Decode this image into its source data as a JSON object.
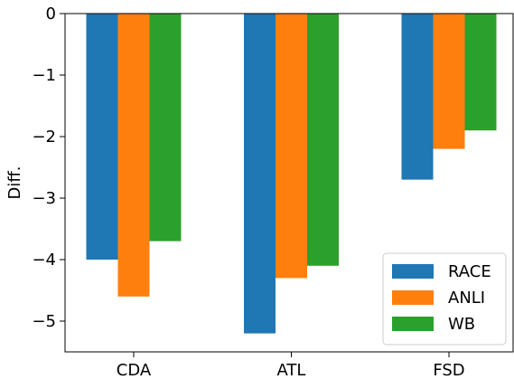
{
  "chart_data": {
    "type": "bar",
    "categories": [
      "CDA",
      "ATL",
      "FSD"
    ],
    "series": [
      {
        "name": "RACE",
        "color": "#1f77b4",
        "values": [
          -4.0,
          -5.2,
          -2.7
        ]
      },
      {
        "name": "ANLI",
        "color": "#ff7f0e",
        "values": [
          -4.6,
          -4.3,
          -2.2
        ]
      },
      {
        "name": "WB",
        "color": "#2ca02c",
        "values": [
          -3.7,
          -4.1,
          -1.9
        ]
      }
    ],
    "title": "",
    "xlabel": "",
    "ylabel": "Diff.",
    "ylim": [
      -5.5,
      0
    ],
    "yticks": [
      0,
      -1,
      -2,
      -3,
      -4,
      -5
    ],
    "ytick_labels": [
      "0",
      "−1",
      "−2",
      "−3",
      "−4",
      "−5"
    ],
    "grid": false,
    "legend_position": "bottom-right"
  }
}
